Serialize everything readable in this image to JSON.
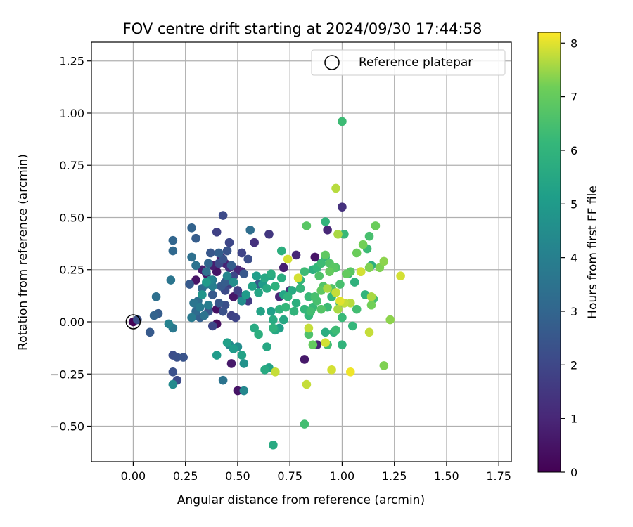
{
  "chart_data": {
    "type": "scatter",
    "title": "FOV centre drift starting at 2024/09/30 17:44:58",
    "xlabel": "Angular distance from reference (arcmin)",
    "ylabel": "Rotation from reference (arcmin)",
    "xlim": [
      -0.2,
      1.81
    ],
    "ylim": [
      -0.67,
      1.34
    ],
    "xticks": [
      0.0,
      0.25,
      0.5,
      0.75,
      1.0,
      1.25,
      1.5,
      1.75
    ],
    "xtick_labels": [
      "0.00",
      "0.25",
      "0.50",
      "0.75",
      "1.00",
      "1.25",
      "1.50",
      "1.75"
    ],
    "yticks": [
      -0.5,
      -0.25,
      0.0,
      0.25,
      0.5,
      0.75,
      1.0,
      1.25
    ],
    "ytick_labels": [
      "−0.50",
      "−0.25",
      "0.00",
      "0.25",
      "0.50",
      "0.75",
      "1.00",
      "1.25"
    ],
    "grid": true,
    "legend": {
      "placement": "top-right",
      "entries": [
        "Reference platepar"
      ]
    },
    "reference_point": {
      "x": 0.0,
      "y": 0.0
    },
    "colorbar": {
      "label": "Hours from first FF file",
      "min": 0,
      "max": 8.2,
      "ticks": [
        0,
        1,
        2,
        3,
        4,
        5,
        6,
        7,
        8
      ],
      "tick_labels": [
        "0",
        "1",
        "2",
        "3",
        "4",
        "5",
        "6",
        "7",
        "8"
      ],
      "colormap": "viridis"
    },
    "points": [
      [
        0.0,
        0.0,
        0.05
      ],
      [
        0.3,
        0.2,
        0.5
      ],
      [
        0.33,
        0.25,
        0.7
      ],
      [
        0.35,
        0.23,
        0.6
      ],
      [
        0.38,
        0.27,
        0.8
      ],
      [
        0.4,
        0.24,
        0.5
      ],
      [
        0.42,
        0.31,
        0.7
      ],
      [
        0.44,
        0.28,
        0.9
      ],
      [
        0.46,
        0.26,
        1.2
      ],
      [
        0.5,
        0.25,
        1.0
      ],
      [
        0.48,
        0.12,
        0.6
      ],
      [
        0.4,
        0.06,
        0.4
      ],
      [
        0.4,
        -0.01,
        0.3
      ],
      [
        0.5,
        -0.33,
        0.5
      ],
      [
        0.47,
        -0.2,
        0.6
      ],
      [
        0.52,
        0.24,
        0.9
      ],
      [
        0.58,
        0.38,
        1.3
      ],
      [
        0.65,
        0.42,
        1.5
      ],
      [
        0.72,
        0.26,
        0.8
      ],
      [
        0.78,
        0.32,
        1.0
      ],
      [
        0.8,
        0.16,
        0.4
      ],
      [
        0.87,
        0.31,
        0.5
      ],
      [
        0.88,
        -0.11,
        0.9
      ],
      [
        0.82,
        -0.18,
        0.6
      ],
      [
        0.93,
        0.44,
        1.0
      ],
      [
        1.0,
        0.55,
        1.3
      ],
      [
        0.7,
        0.12,
        1.0
      ],
      [
        0.75,
        0.15,
        1.2
      ],
      [
        0.43,
        0.51,
        2.1
      ],
      [
        0.4,
        0.43,
        1.8
      ],
      [
        0.46,
        0.38,
        2.0
      ],
      [
        0.52,
        0.33,
        1.9
      ],
      [
        0.55,
        0.3,
        2.2
      ],
      [
        0.45,
        0.34,
        2.4
      ],
      [
        0.43,
        0.3,
        2.4
      ],
      [
        0.41,
        0.28,
        2.1
      ],
      [
        0.48,
        0.22,
        2.0
      ],
      [
        0.46,
        0.18,
        1.7
      ],
      [
        0.44,
        0.15,
        2.1
      ],
      [
        0.5,
        0.15,
        1.8
      ],
      [
        0.52,
        0.12,
        2.0
      ],
      [
        0.55,
        0.1,
        1.6
      ],
      [
        0.49,
        0.02,
        1.9
      ],
      [
        0.44,
        0.08,
        2.2
      ],
      [
        0.41,
        0.09,
        2.5
      ],
      [
        0.38,
        0.13,
        2.6
      ],
      [
        0.38,
        -0.02,
        2.0
      ],
      [
        0.47,
        0.03,
        1.8
      ],
      [
        0.43,
        0.05,
        2.3
      ],
      [
        0.42,
        0.17,
        2.6
      ],
      [
        0.45,
        0.2,
        2.3
      ],
      [
        0.32,
        0.02,
        2.8
      ],
      [
        0.24,
        -0.17,
        2.4
      ],
      [
        0.21,
        -0.17,
        2.3
      ],
      [
        0.19,
        -0.16,
        2.2
      ],
      [
        0.21,
        -0.28,
        2.1
      ],
      [
        0.19,
        -0.24,
        2.3
      ],
      [
        0.02,
        0.01,
        2.3
      ],
      [
        0.08,
        -0.05,
        2.6
      ],
      [
        0.12,
        0.04,
        2.7
      ],
      [
        0.1,
        0.03,
        2.9
      ],
      [
        0.19,
        0.39,
        3.0
      ],
      [
        0.19,
        0.34,
        3.1
      ],
      [
        0.3,
        0.4,
        2.7
      ],
      [
        0.28,
        0.45,
        2.9
      ],
      [
        0.37,
        0.33,
        2.5
      ],
      [
        0.47,
        0.27,
        2.7
      ],
      [
        0.53,
        0.23,
        2.5
      ],
      [
        0.6,
        0.18,
        2.6
      ],
      [
        0.27,
        0.18,
        2.6
      ],
      [
        0.36,
        0.05,
        2.5
      ],
      [
        0.56,
        0.44,
        3.3
      ],
      [
        0.44,
        0.19,
        2.7
      ],
      [
        0.41,
        0.33,
        2.8
      ],
      [
        0.36,
        0.28,
        3.0
      ],
      [
        0.28,
        0.31,
        3.4
      ],
      [
        0.3,
        0.27,
        3.5
      ],
      [
        0.35,
        0.24,
        3.4
      ],
      [
        0.33,
        0.16,
        3.2
      ],
      [
        0.35,
        0.18,
        3.5
      ],
      [
        0.38,
        0.2,
        3.7
      ],
      [
        0.31,
        0.1,
        3.3
      ],
      [
        0.29,
        0.09,
        3.6
      ],
      [
        0.32,
        0.07,
        3.8
      ],
      [
        0.36,
        0.08,
        3.9
      ],
      [
        0.3,
        0.05,
        3.2
      ],
      [
        0.34,
        0.03,
        3.5
      ],
      [
        0.28,
        0.02,
        3.8
      ],
      [
        0.43,
        -0.28,
        3.5
      ],
      [
        0.18,
        0.2,
        3.6
      ],
      [
        0.11,
        0.12,
        3.4
      ],
      [
        0.19,
        -0.03,
        3.7
      ],
      [
        0.17,
        -0.01,
        4.1
      ],
      [
        0.19,
        -0.3,
        4.4
      ],
      [
        0.38,
        0.17,
        4.0
      ],
      [
        0.37,
        0.2,
        4.2
      ],
      [
        0.52,
        0.1,
        4.5
      ],
      [
        0.5,
        -0.12,
        4.5
      ],
      [
        0.46,
        -0.11,
        4.2
      ],
      [
        0.53,
        -0.2,
        4.7
      ],
      [
        0.45,
        0.22,
        4.2
      ],
      [
        0.48,
        0.19,
        4.5
      ],
      [
        0.53,
        -0.33,
        4.3
      ],
      [
        0.33,
        0.13,
        4.8
      ],
      [
        0.35,
        0.19,
        5.0
      ],
      [
        0.4,
        -0.16,
        5.0
      ],
      [
        0.45,
        -0.1,
        5.2
      ],
      [
        0.48,
        -0.13,
        5.0
      ],
      [
        0.52,
        -0.16,
        5.3
      ],
      [
        0.54,
        0.13,
        5.0
      ],
      [
        0.57,
        0.17,
        5.3
      ],
      [
        0.59,
        0.22,
        5.1
      ],
      [
        0.6,
        0.14,
        5.4
      ],
      [
        0.62,
        0.18,
        5.0
      ],
      [
        0.64,
        0.16,
        5.6
      ],
      [
        0.66,
        0.22,
        5.4
      ],
      [
        0.66,
        0.23,
        5.7
      ],
      [
        0.63,
        0.21,
        5.5
      ],
      [
        0.61,
        0.05,
        5.3
      ],
      [
        0.58,
        -0.03,
        5.6
      ],
      [
        0.6,
        -0.06,
        5.8
      ],
      [
        0.64,
        -0.12,
        5.5
      ],
      [
        0.65,
        -0.22,
        5.3
      ],
      [
        0.63,
        -0.23,
        5.6
      ],
      [
        0.66,
        0.05,
        5.2
      ],
      [
        0.67,
        0.01,
        5.6
      ],
      [
        0.67,
        -0.03,
        5.9
      ],
      [
        0.68,
        -0.04,
        5.5
      ],
      [
        0.7,
        -0.03,
        5.2
      ],
      [
        0.72,
        0.01,
        5.5
      ],
      [
        0.72,
        0.13,
        5.4
      ],
      [
        0.74,
        0.12,
        5.9
      ],
      [
        0.71,
        0.21,
        5.7
      ],
      [
        0.68,
        0.17,
        5.9
      ],
      [
        0.7,
        0.06,
        5.9
      ],
      [
        0.73,
        0.07,
        6.1
      ],
      [
        0.76,
        0.15,
        5.6
      ],
      [
        0.78,
        0.09,
        5.8
      ],
      [
        0.77,
        0.05,
        6.0
      ],
      [
        0.8,
        0.16,
        6.1
      ],
      [
        0.82,
        0.24,
        6.3
      ],
      [
        0.84,
        0.12,
        6.2
      ],
      [
        0.84,
        0.03,
        6.1
      ],
      [
        0.85,
        0.05,
        6.4
      ],
      [
        0.86,
        0.07,
        6.2
      ],
      [
        0.86,
        0.25,
        5.8
      ],
      [
        0.88,
        0.26,
        6.1
      ],
      [
        0.9,
        0.28,
        6.3
      ],
      [
        0.92,
        0.31,
        5.9
      ],
      [
        0.92,
        0.48,
        6.0
      ],
      [
        0.92,
        -0.05,
        5.7
      ],
      [
        0.93,
        0.07,
        6.3
      ],
      [
        0.95,
        0.12,
        6.1
      ],
      [
        0.96,
        -0.05,
        6.0
      ],
      [
        0.97,
        -0.04,
        6.3
      ],
      [
        0.99,
        0.09,
        6.4
      ],
      [
        1.0,
        0.02,
        6.2
      ],
      [
        1.0,
        -0.11,
        6.0
      ],
      [
        1.01,
        0.42,
        6.2
      ],
      [
        1.01,
        0.09,
        6.3
      ],
      [
        1.03,
        0.23,
        6.2
      ],
      [
        1.05,
        -0.02,
        6.1
      ],
      [
        1.06,
        0.19,
        5.9
      ],
      [
        1.07,
        0.06,
        6.4
      ],
      [
        1.11,
        0.13,
        6.0
      ],
      [
        1.12,
        0.35,
        6.3
      ],
      [
        1.13,
        0.41,
        6.5
      ],
      [
        1.14,
        0.27,
        5.8
      ],
      [
        1.15,
        0.11,
        6.5
      ],
      [
        1.0,
        0.96,
        6.3
      ],
      [
        0.71,
        0.34,
        5.8
      ],
      [
        0.8,
        0.2,
        6.0
      ],
      [
        0.82,
        0.06,
        6.1
      ],
      [
        0.67,
        -0.59,
        5.6
      ],
      [
        0.82,
        -0.49,
        6.4
      ],
      [
        0.93,
        -0.11,
        6.4
      ],
      [
        0.87,
        0.12,
        6.5
      ],
      [
        0.89,
        0.22,
        6.6
      ],
      [
        0.9,
        0.06,
        6.7
      ],
      [
        0.84,
        -0.06,
        6.6
      ],
      [
        0.83,
        0.46,
        6.8
      ],
      [
        0.97,
        0.26,
        6.6
      ],
      [
        0.99,
        0.18,
        6.5
      ],
      [
        0.94,
        0.28,
        6.7
      ],
      [
        0.96,
        0.26,
        6.8
      ],
      [
        0.91,
        0.17,
        6.7
      ],
      [
        0.88,
        0.1,
        6.5
      ],
      [
        0.95,
        0.16,
        6.7
      ],
      [
        0.9,
        0.15,
        6.9
      ],
      [
        0.86,
        -0.11,
        7.0
      ],
      [
        0.92,
        0.32,
        6.9
      ],
      [
        0.94,
        0.24,
        7.0
      ],
      [
        1.02,
        0.23,
        7.0
      ],
      [
        1.04,
        0.24,
        6.8
      ],
      [
        1.07,
        0.33,
        7.1
      ],
      [
        1.09,
        0.24,
        7.3
      ],
      [
        1.1,
        0.37,
        7.2
      ],
      [
        1.13,
        0.26,
        7.3
      ],
      [
        1.14,
        0.08,
        7.2
      ],
      [
        1.16,
        0.46,
        7.1
      ],
      [
        1.18,
        0.26,
        7.3
      ],
      [
        1.2,
        0.29,
        7.4
      ],
      [
        1.2,
        -0.21,
        7.3
      ],
      [
        1.23,
        0.01,
        7.4
      ],
      [
        1.14,
        0.12,
        7.6
      ],
      [
        1.13,
        -0.05,
        7.8
      ],
      [
        1.09,
        0.24,
        7.9
      ],
      [
        1.04,
        0.09,
        7.7
      ],
      [
        1.01,
        0.09,
        7.8
      ],
      [
        0.98,
        0.06,
        7.6
      ],
      [
        0.99,
        0.1,
        8.0
      ],
      [
        0.97,
        0.14,
        7.8
      ],
      [
        0.97,
        0.64,
        7.7
      ],
      [
        0.98,
        0.42,
        7.6
      ],
      [
        0.92,
        -0.1,
        7.9
      ],
      [
        0.95,
        -0.23,
        7.9
      ],
      [
        1.04,
        -0.24,
        8.1
      ],
      [
        0.84,
        -0.03,
        7.8
      ],
      [
        0.83,
        -0.3,
        7.8
      ],
      [
        0.74,
        0.3,
        7.9
      ],
      [
        0.79,
        0.21,
        7.9
      ],
      [
        0.68,
        -0.24,
        7.8
      ],
      [
        0.93,
        0.16,
        7.6
      ],
      [
        1.28,
        0.22,
        7.9
      ]
    ]
  }
}
